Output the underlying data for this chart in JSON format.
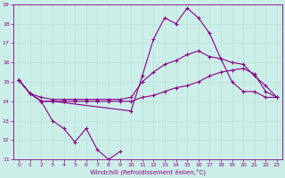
{
  "title": "",
  "xlabel": "Windchill (Refroidissement éolien,°C)",
  "bg_color": "#cceee8",
  "grid_color": "#b0ddd5",
  "line_color": "#880088",
  "hours": [
    0,
    1,
    2,
    3,
    4,
    5,
    6,
    7,
    8,
    9,
    10,
    11,
    12,
    13,
    14,
    15,
    16,
    17,
    18,
    19,
    20,
    21,
    22,
    23
  ],
  "series": {
    "line1": [
      15.1,
      14.4,
      14.0,
      13.0,
      12.6,
      11.9,
      12.6,
      11.5,
      11.0,
      11.4,
      null,
      null,
      null,
      null,
      null,
      null,
      null,
      null,
      null,
      null,
      null,
      null,
      null,
      null
    ],
    "line2": [
      15.1,
      14.4,
      14.0,
      14.0,
      null,
      null,
      null,
      null,
      null,
      null,
      13.5,
      15.3,
      17.2,
      18.3,
      18.0,
      18.8,
      18.3,
      17.5,
      16.2,
      15.0,
      14.5,
      14.5,
      14.2,
      14.2
    ],
    "line3": [
      15.1,
      14.4,
      14.2,
      14.1,
      14.1,
      14.1,
      14.1,
      14.1,
      14.1,
      14.1,
      14.2,
      15.0,
      15.5,
      15.9,
      16.1,
      16.4,
      16.6,
      16.3,
      16.2,
      16.0,
      15.9,
      15.3,
      14.8,
      14.2
    ],
    "line4": [
      15.1,
      14.4,
      14.0,
      14.0,
      14.0,
      14.0,
      14.0,
      14.0,
      14.0,
      14.0,
      14.0,
      14.2,
      14.3,
      14.5,
      14.7,
      14.8,
      15.0,
      15.3,
      15.5,
      15.6,
      15.7,
      15.4,
      14.5,
      14.2
    ]
  },
  "ylim": [
    11,
    19
  ],
  "xlim": [
    -0.5,
    23.5
  ],
  "yticks": [
    11,
    12,
    13,
    14,
    15,
    16,
    17,
    18,
    19
  ],
  "xticks": [
    0,
    1,
    2,
    3,
    4,
    5,
    6,
    7,
    8,
    9,
    10,
    11,
    12,
    13,
    14,
    15,
    16,
    17,
    18,
    19,
    20,
    21,
    22,
    23
  ],
  "tick_fontsize": 4.5,
  "xlabel_fontsize": 5.0,
  "marker": "+",
  "markersize": 3,
  "markeredgewidth": 0.8,
  "linewidth": 0.8
}
